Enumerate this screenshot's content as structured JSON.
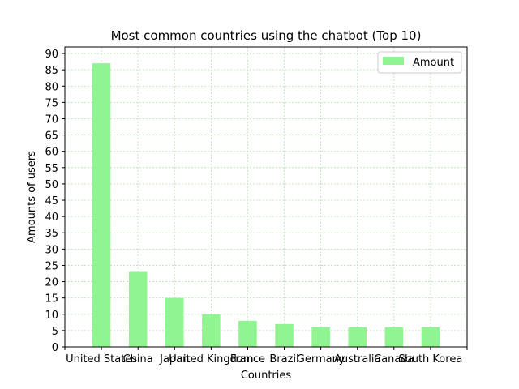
{
  "chart_data": {
    "type": "bar",
    "title": "Most common countries using the chatbot (Top 10)",
    "xlabel": "Countries",
    "ylabel": "Amounts of users",
    "categories": [
      "United States",
      "China",
      "Japan",
      "United Kingdom",
      "France",
      "Brazil",
      "Germany",
      "Australia",
      "Canada",
      "South Korea"
    ],
    "series": [
      {
        "name": "Amount",
        "values": [
          87,
          23,
          15,
          10,
          8,
          7,
          6,
          6,
          6,
          6
        ]
      }
    ],
    "ylim": [
      0,
      92
    ],
    "yticks": [
      0,
      5,
      10,
      15,
      20,
      25,
      30,
      35,
      40,
      45,
      50,
      55,
      60,
      65,
      70,
      75,
      80,
      85,
      90
    ],
    "grid": true,
    "legend_position": "top-right",
    "colors": {
      "bar": "#90f590",
      "grid": "#b6e0b6"
    }
  }
}
